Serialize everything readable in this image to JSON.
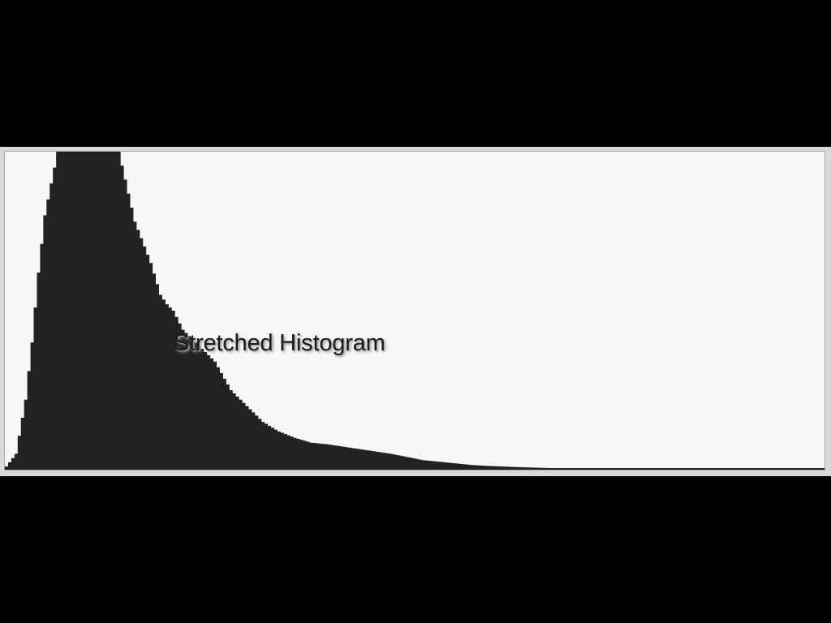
{
  "colors": {
    "background": "#000000",
    "plot_area": "#f7f7f7",
    "frame": "#d9d9d9",
    "bars": "#222222"
  },
  "chart_data": {
    "type": "area",
    "title": "Stretched Histogram",
    "xlabel": "",
    "ylabel": "",
    "grid": false,
    "legend": "none",
    "xlim": [
      0,
      255
    ],
    "ylim": [
      0,
      100
    ],
    "clipped_at_top": true,
    "x": [
      0,
      3,
      6,
      8,
      10,
      12,
      14,
      16,
      18,
      20,
      24,
      30,
      35,
      40,
      45,
      48,
      50,
      52,
      55,
      60,
      65,
      70,
      75,
      80,
      85,
      90,
      95,
      100,
      110,
      120,
      125,
      130,
      135,
      140,
      145,
      150,
      155,
      160,
      170,
      180,
      185,
      190,
      200,
      210,
      220,
      230,
      240,
      255
    ],
    "y": [
      1,
      5,
      22,
      40,
      62,
      80,
      90,
      100,
      100,
      100,
      100,
      100,
      100,
      78,
      65,
      55,
      52,
      50,
      44,
      39,
      34,
      25,
      20,
      15,
      12,
      10,
      8.5,
      8,
      6.5,
      5,
      4,
      3,
      2.5,
      2,
      1.5,
      1.2,
      1,
      0.8,
      0.5,
      0.5,
      0.3,
      0.2,
      0.2,
      0.1,
      0.1,
      0.1,
      0.1,
      0.1
    ]
  }
}
